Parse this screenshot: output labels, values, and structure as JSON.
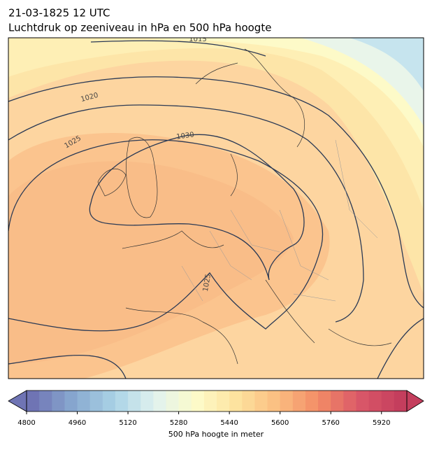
{
  "title": {
    "line1": "21-03-1825 12 UTC",
    "line2": "Luchtdruk op zeeniveau in hPa en 500 hPa hoogte"
  },
  "map": {
    "contour_labels": [
      1015,
      1020,
      1025,
      1030,
      1025
    ]
  },
  "colorbar": {
    "label": "500 hPa hoogte in meter",
    "lim": [
      4800,
      6000
    ],
    "step": 40,
    "ticks": [
      4800,
      4960,
      5120,
      5280,
      5440,
      5600,
      5760,
      5920
    ],
    "colors": [
      "#6f74b4",
      "#88a9d0",
      "#aad3e6",
      "#e1f2ef",
      "#fdfbc9",
      "#fde29e",
      "#fbbd80",
      "#f28b66",
      "#da5869",
      "#c43e5d"
    ]
  }
}
